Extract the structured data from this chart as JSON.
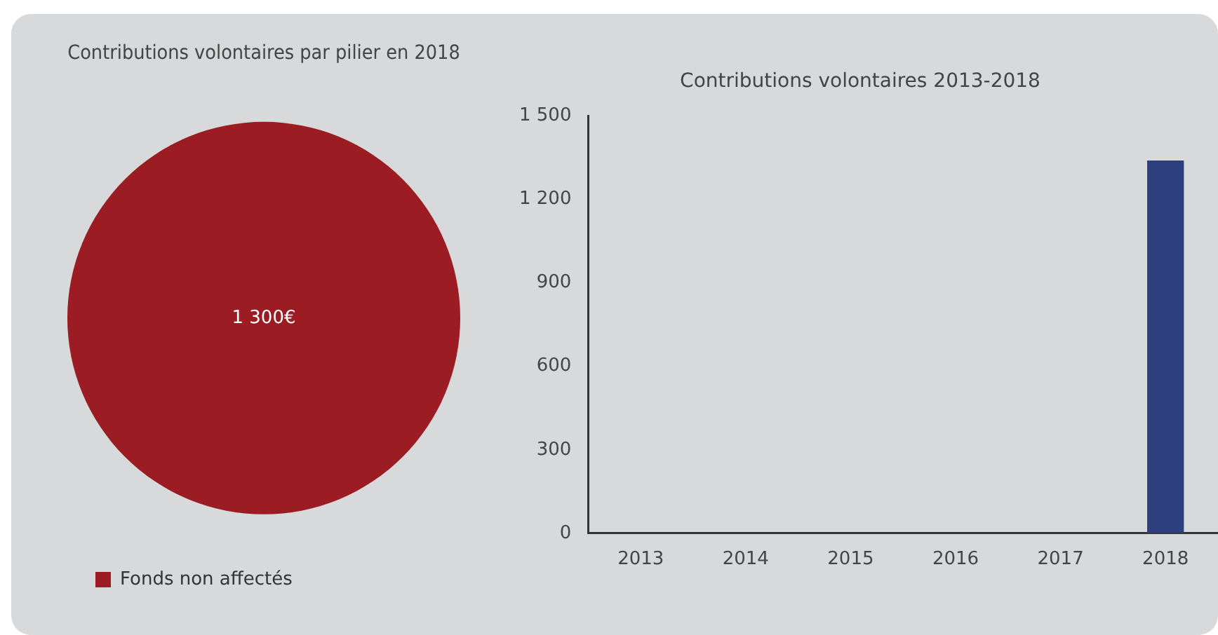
{
  "chart_data": [
    {
      "type": "pie",
      "title": "Contributions volontaires par pilier en 2018",
      "categories": [
        "Fonds non affectés"
      ],
      "values": [
        1300
      ],
      "colors": [
        "#9b1c22"
      ],
      "value_labels": [
        "1 300€"
      ],
      "legend": "bottom"
    },
    {
      "type": "bar",
      "title": "Contributions volontaires 2013-2018",
      "categories": [
        "2013",
        "2014",
        "2015",
        "2016",
        "2017",
        "2018"
      ],
      "values": [
        0,
        0,
        0,
        0,
        0,
        1340
      ],
      "color": "#2e3f80",
      "ylim": [
        0,
        1500
      ],
      "yticks": [
        0,
        300,
        600,
        900,
        {
          "value": 1200,
          "label": "1 200"
        },
        {
          "value": 1500,
          "label": "1 500"
        }
      ],
      "grid": false
    }
  ]
}
